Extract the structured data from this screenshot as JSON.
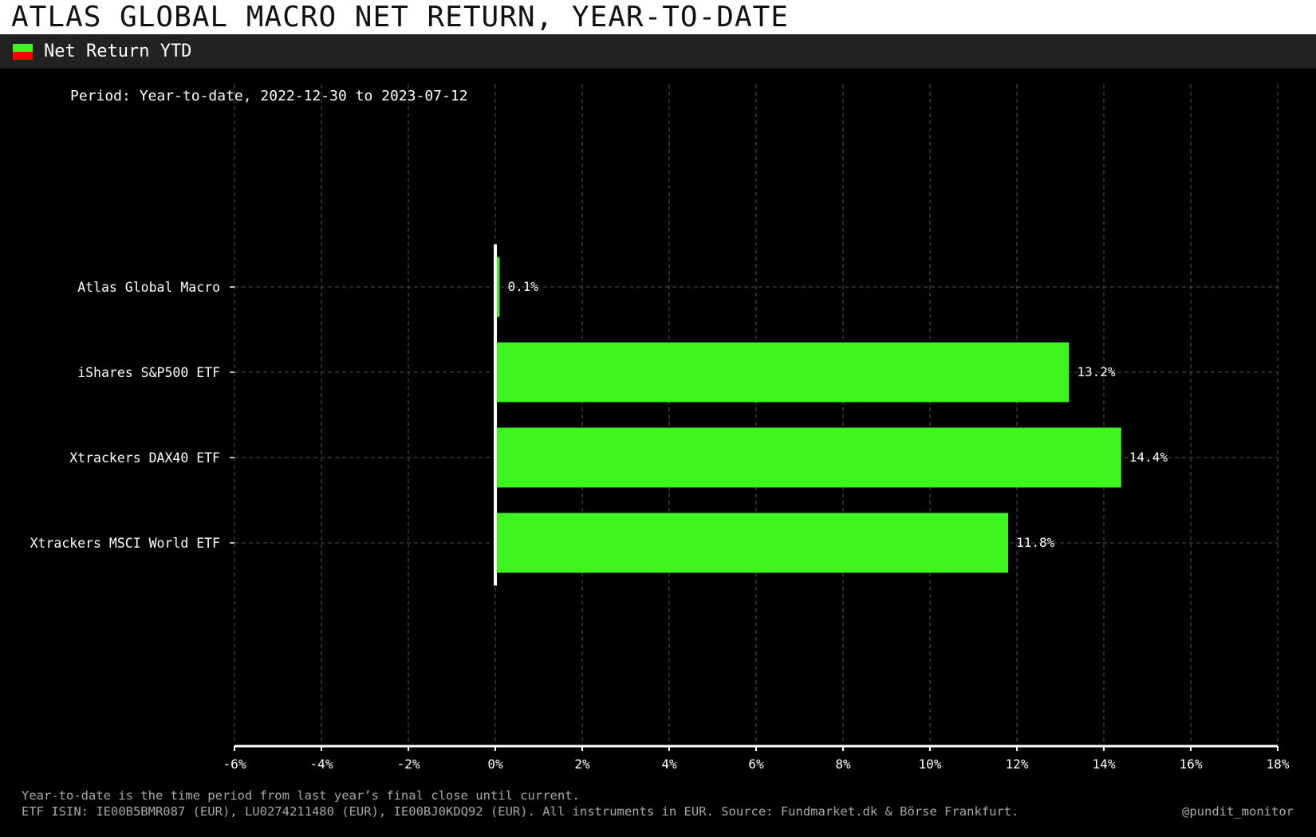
{
  "header": {
    "title": "ATLAS GLOBAL MACRO NET RETURN, YEAR-TO-DATE"
  },
  "legend": {
    "label": "Net Return YTD",
    "swatch_colors": [
      "#3ef520",
      "#ff0000"
    ]
  },
  "period_note": "Period: Year-to-date, 2022-12-30 to 2023-07-12",
  "footer": {
    "note_1": "Year-to-date is the time period from last year’s final close until current.",
    "note_2": "ETF ISIN: IE00B5BMR087 (EUR), LU0274211480 (EUR), IE00BJ0KDQ92 (EUR). All instruments in EUR.  Source: Fundmarket.dk & Börse Frankfurt.",
    "credit": "@pundit_monitor"
  },
  "colors": {
    "positive": "#3ef520",
    "negative": "#ff0000",
    "background": "#000000",
    "grid": "#555555",
    "axis": "#ffffff"
  },
  "chart_data": {
    "type": "bar",
    "orientation": "horizontal",
    "categories": [
      "Atlas Global Macro",
      "iShares S&P500 ETF",
      "Xtrackers DAX40 ETF",
      "Xtrackers MSCI World ETF"
    ],
    "values": [
      0.1,
      13.2,
      14.4,
      11.8
    ],
    "value_labels": [
      "0.1%",
      "13.2%",
      "14.4%",
      "11.8%"
    ],
    "xlim": [
      -6,
      18
    ],
    "x_ticks": [
      -6,
      -4,
      -2,
      0,
      2,
      4,
      6,
      8,
      10,
      12,
      14,
      16,
      18
    ],
    "x_tick_labels": [
      "-6%",
      "-4%",
      "-2%",
      "0%",
      "2%",
      "4%",
      "6%",
      "8%",
      "10%",
      "12%",
      "14%",
      "16%",
      "18%"
    ],
    "grid": true,
    "title": "",
    "xlabel": "",
    "ylabel": ""
  }
}
